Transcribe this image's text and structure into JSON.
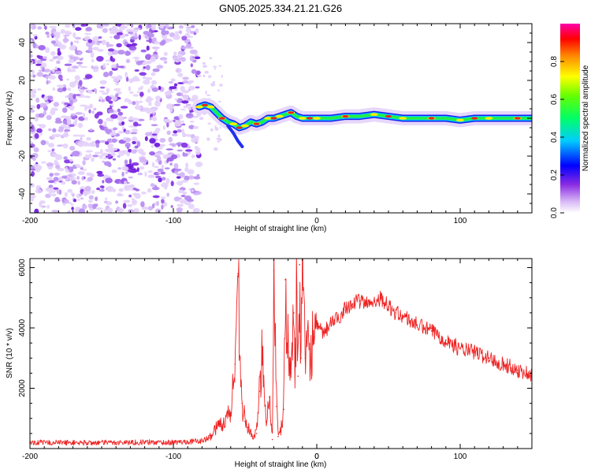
{
  "title": "GN05.2025.334.21.21.G26",
  "chart_data": [
    {
      "type": "heatmap",
      "name": "spectrogram",
      "xlabel": "Height of straight line (km)",
      "ylabel": "Frequency (Hz)",
      "xlim": [
        -200,
        150
      ],
      "ylim": [
        -50,
        50
      ],
      "xticks": [
        -200,
        -100,
        0,
        100
      ],
      "xtick_labels": [
        "-200",
        "-100",
        "0",
        "100"
      ],
      "yticks": [
        -40,
        -20,
        0,
        20,
        40
      ],
      "ytick_labels": [
        "-40",
        "-20",
        "0",
        "20",
        "40"
      ],
      "noise_region_x": [
        -200,
        -82
      ],
      "ridge": {
        "x": [
          -82,
          -78,
          -74,
          -70,
          -66,
          -62,
          -58,
          -54,
          -50,
          -46,
          -42,
          -38,
          -34,
          -30,
          -26,
          -22,
          -18,
          -14,
          -10,
          -5,
          0,
          10,
          20,
          30,
          40,
          50,
          60,
          70,
          80,
          90,
          100,
          110,
          120,
          130,
          140,
          150
        ],
        "freq": [
          6,
          7,
          6,
          3,
          0,
          -2,
          -3,
          -5,
          -4,
          -2,
          -3,
          -2,
          0,
          0,
          1,
          2,
          3,
          1,
          0,
          0,
          0,
          0,
          1,
          1,
          2,
          1,
          0,
          0,
          0,
          0,
          -1,
          0,
          0,
          0,
          0,
          0
        ]
      },
      "colorbar": {
        "label": "Normalized spectral amplitude",
        "range": [
          0.0,
          1.0
        ],
        "ticks": [
          0.0,
          0.2,
          0.4,
          0.6,
          0.8
        ],
        "tick_labels": [
          "0.0",
          "0.2",
          "0.4",
          "0.6",
          "0.8"
        ]
      }
    },
    {
      "type": "line",
      "name": "snr",
      "xlabel": "Height of straight line (km)",
      "ylabel": "SNR (10 * v/v)",
      "xlim": [
        -200,
        150
      ],
      "ylim": [
        0,
        6300
      ],
      "xticks": [
        -200,
        -100,
        0,
        100
      ],
      "xtick_labels": [
        "-200",
        "-100",
        "0",
        "100"
      ],
      "yticks": [
        2000,
        4000,
        6000
      ],
      "ytick_labels": [
        "2000",
        "4000",
        "6000"
      ],
      "color": "#ee2222",
      "series": [
        {
          "name": "SNR",
          "x": [
            -200,
            -180,
            -160,
            -140,
            -120,
            -100,
            -90,
            -80,
            -75,
            -70,
            -65,
            -60,
            -57,
            -55,
            -52,
            -50,
            -48,
            -45,
            -42,
            -40,
            -38,
            -35,
            -33,
            -31,
            -30,
            -28,
            -27,
            -25,
            -23,
            -22,
            -20,
            -18,
            -16,
            -15,
            -14,
            -13,
            -12,
            -11,
            -10,
            -8,
            -5,
            -2,
            0,
            5,
            10,
            15,
            20,
            25,
            30,
            35,
            40,
            45,
            50,
            55,
            60,
            70,
            80,
            90,
            100,
            110,
            120,
            130,
            140,
            150
          ],
          "y": [
            200,
            200,
            190,
            200,
            210,
            200,
            230,
            250,
            350,
            700,
            900,
            1200,
            2800,
            5800,
            1500,
            900,
            700,
            400,
            500,
            1900,
            3300,
            900,
            1700,
            300,
            5900,
            1400,
            400,
            600,
            1300,
            5600,
            3200,
            2500,
            4500,
            2700,
            5200,
            2400,
            6100,
            3000,
            5800,
            3000,
            3300,
            3700,
            4000,
            3800,
            4200,
            4300,
            4700,
            4800,
            4900,
            4800,
            4900,
            5000,
            4700,
            4500,
            4400,
            4100,
            3900,
            3600,
            3300,
            3200,
            3000,
            2800,
            2600,
            2450
          ]
        }
      ]
    }
  ]
}
